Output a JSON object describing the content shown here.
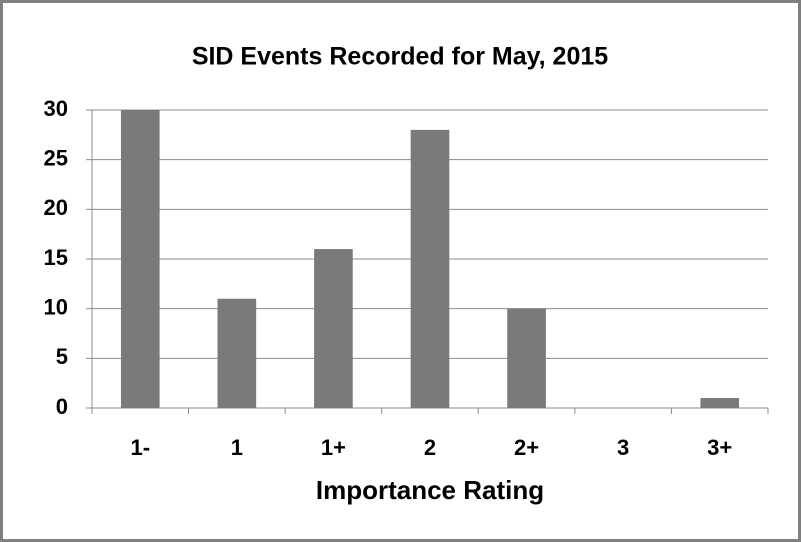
{
  "chart_data": {
    "type": "bar",
    "title": "SID Events Recorded for May, 2015",
    "x_label": "Importance Rating",
    "categories": [
      "1-",
      "1",
      "1+",
      "2",
      "2+",
      "3",
      "3+"
    ],
    "values": [
      30,
      11,
      16,
      28,
      10,
      0,
      1
    ],
    "color": "#7a7a7a",
    "ylim": [
      0,
      30
    ],
    "yticks": [
      0,
      5,
      10,
      15,
      20,
      25,
      30
    ],
    "grid": true
  }
}
